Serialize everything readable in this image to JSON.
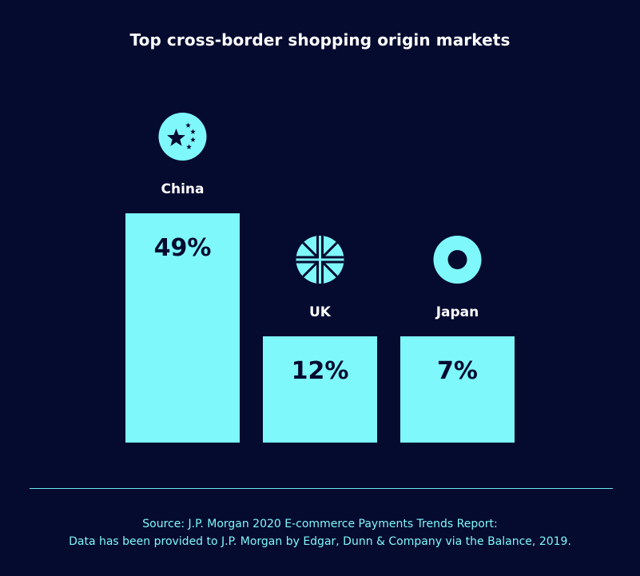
{
  "chart_data": {
    "type": "bar",
    "title": "Top cross-border shopping origin markets",
    "categories": [
      "China",
      "UK",
      "Japan"
    ],
    "values": [
      49,
      12,
      7
    ],
    "value_labels": [
      "49%",
      "12%",
      "7%"
    ],
    "icons": [
      "china-flag-icon",
      "uk-flag-icon",
      "japan-flag-icon"
    ],
    "colors": {
      "background": "#050a2f",
      "bar": "#7ef8fb",
      "text": "#ffffff",
      "value_text": "#050a2f",
      "source_text": "#7ef8fb"
    }
  },
  "source": {
    "line1": "Source: J.P. Morgan 2020 E-commerce Payments Trends Report:",
    "line2": "Data has been provided to J.P. Morgan by Edgar, Dunn & Company via the Balance, 2019."
  }
}
